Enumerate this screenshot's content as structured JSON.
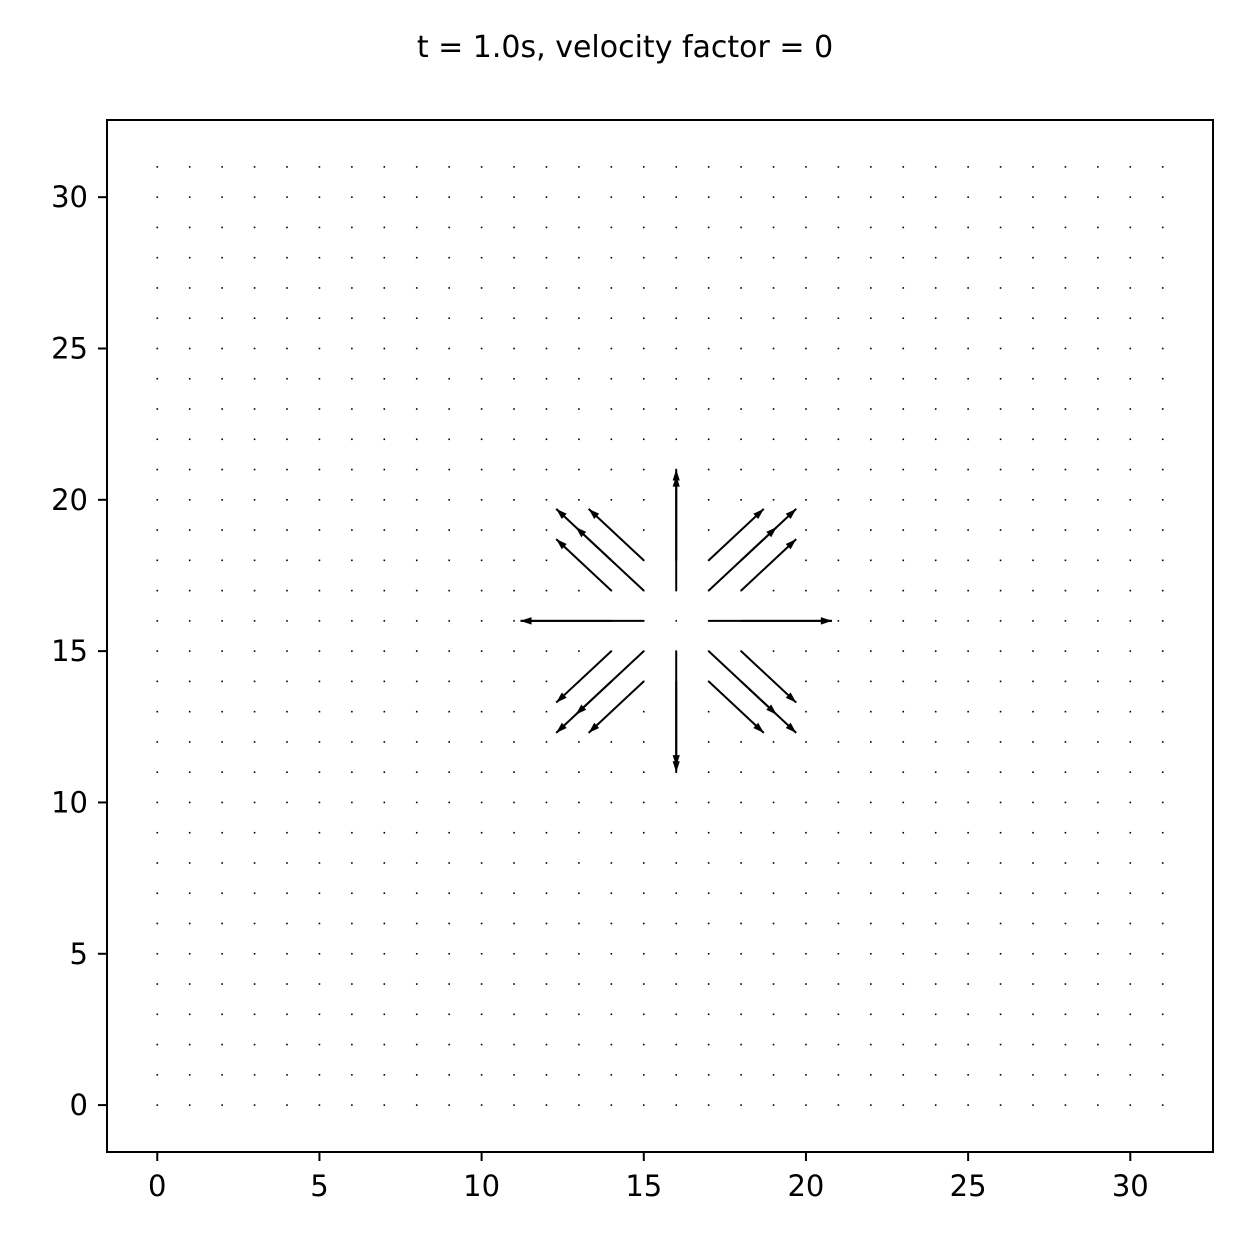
{
  "chart_data": {
    "type": "quiver",
    "title": "t = 1.0s, velocity factor = 0",
    "xlabel": "",
    "ylabel": "",
    "xlim": [
      -1.55,
      32.55
    ],
    "ylim": [
      -1.55,
      32.55
    ],
    "grid": false,
    "grid_points": {
      "x": [
        0,
        31
      ],
      "y": [
        0,
        31
      ],
      "step": 1
    },
    "x_ticks": [
      0,
      5,
      10,
      15,
      20,
      25,
      30
    ],
    "y_ticks": [
      0,
      5,
      10,
      15,
      20,
      25,
      30
    ],
    "center": [
      16,
      16
    ],
    "vectors": [
      {
        "x": 15,
        "y": 16,
        "u": -3.8,
        "v": 0
      },
      {
        "x": 14,
        "y": 16,
        "u": -2.8,
        "v": 0
      },
      {
        "x": 17,
        "y": 16,
        "u": 3.8,
        "v": 0
      },
      {
        "x": 18,
        "y": 16,
        "u": 2.8,
        "v": 0
      },
      {
        "x": 16,
        "y": 17,
        "u": 0,
        "v": 4.0
      },
      {
        "x": 16,
        "y": 18,
        "u": 0,
        "v": 2.8
      },
      {
        "x": 16,
        "y": 15,
        "u": 0,
        "v": -4.0
      },
      {
        "x": 16,
        "y": 14,
        "u": 0,
        "v": -2.8
      },
      {
        "x": 15,
        "y": 17,
        "u": -2.7,
        "v": 2.7
      },
      {
        "x": 14,
        "y": 17,
        "u": -1.7,
        "v": 1.7
      },
      {
        "x": 15,
        "y": 18,
        "u": -1.7,
        "v": 1.7
      },
      {
        "x": 14,
        "y": 18,
        "u": -1.1,
        "v": 1.1
      },
      {
        "x": 17,
        "y": 17,
        "u": 2.7,
        "v": 2.7
      },
      {
        "x": 18,
        "y": 17,
        "u": 1.7,
        "v": 1.7
      },
      {
        "x": 17,
        "y": 18,
        "u": 1.7,
        "v": 1.7
      },
      {
        "x": 18,
        "y": 18,
        "u": 1.1,
        "v": 1.1
      },
      {
        "x": 15,
        "y": 15,
        "u": -2.7,
        "v": -2.7
      },
      {
        "x": 14,
        "y": 15,
        "u": -1.7,
        "v": -1.7
      },
      {
        "x": 15,
        "y": 14,
        "u": -1.7,
        "v": -1.7
      },
      {
        "x": 14,
        "y": 14,
        "u": -1.1,
        "v": -1.1
      },
      {
        "x": 17,
        "y": 15,
        "u": 2.7,
        "v": -2.7
      },
      {
        "x": 18,
        "y": 15,
        "u": 1.7,
        "v": -1.7
      },
      {
        "x": 17,
        "y": 14,
        "u": 1.7,
        "v": -1.7
      },
      {
        "x": 18,
        "y": 14,
        "u": 1.1,
        "v": -1.1
      }
    ]
  }
}
